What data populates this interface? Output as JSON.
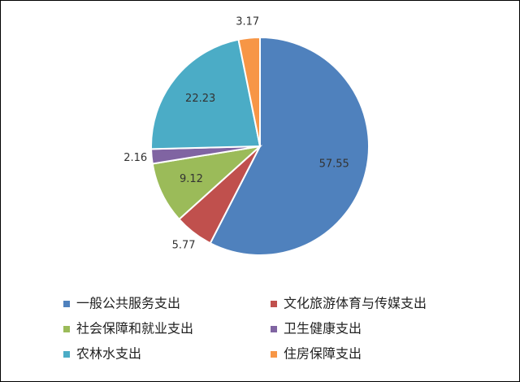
{
  "chart_data": {
    "type": "pie",
    "categories": [
      "一般公共服务支出",
      "文化旅游体育与传媒支出",
      "社会保障和就业支出",
      "卫生健康支出",
      "农林水支出",
      "住房保障支出"
    ],
    "values": [
      57.55,
      5.77,
      9.12,
      2.16,
      22.23,
      3.17
    ],
    "colors": [
      "#4f81bd",
      "#c0504d",
      "#9bbb59",
      "#8064a2",
      "#4bacc6",
      "#f79646"
    ],
    "legend": "bottom"
  }
}
